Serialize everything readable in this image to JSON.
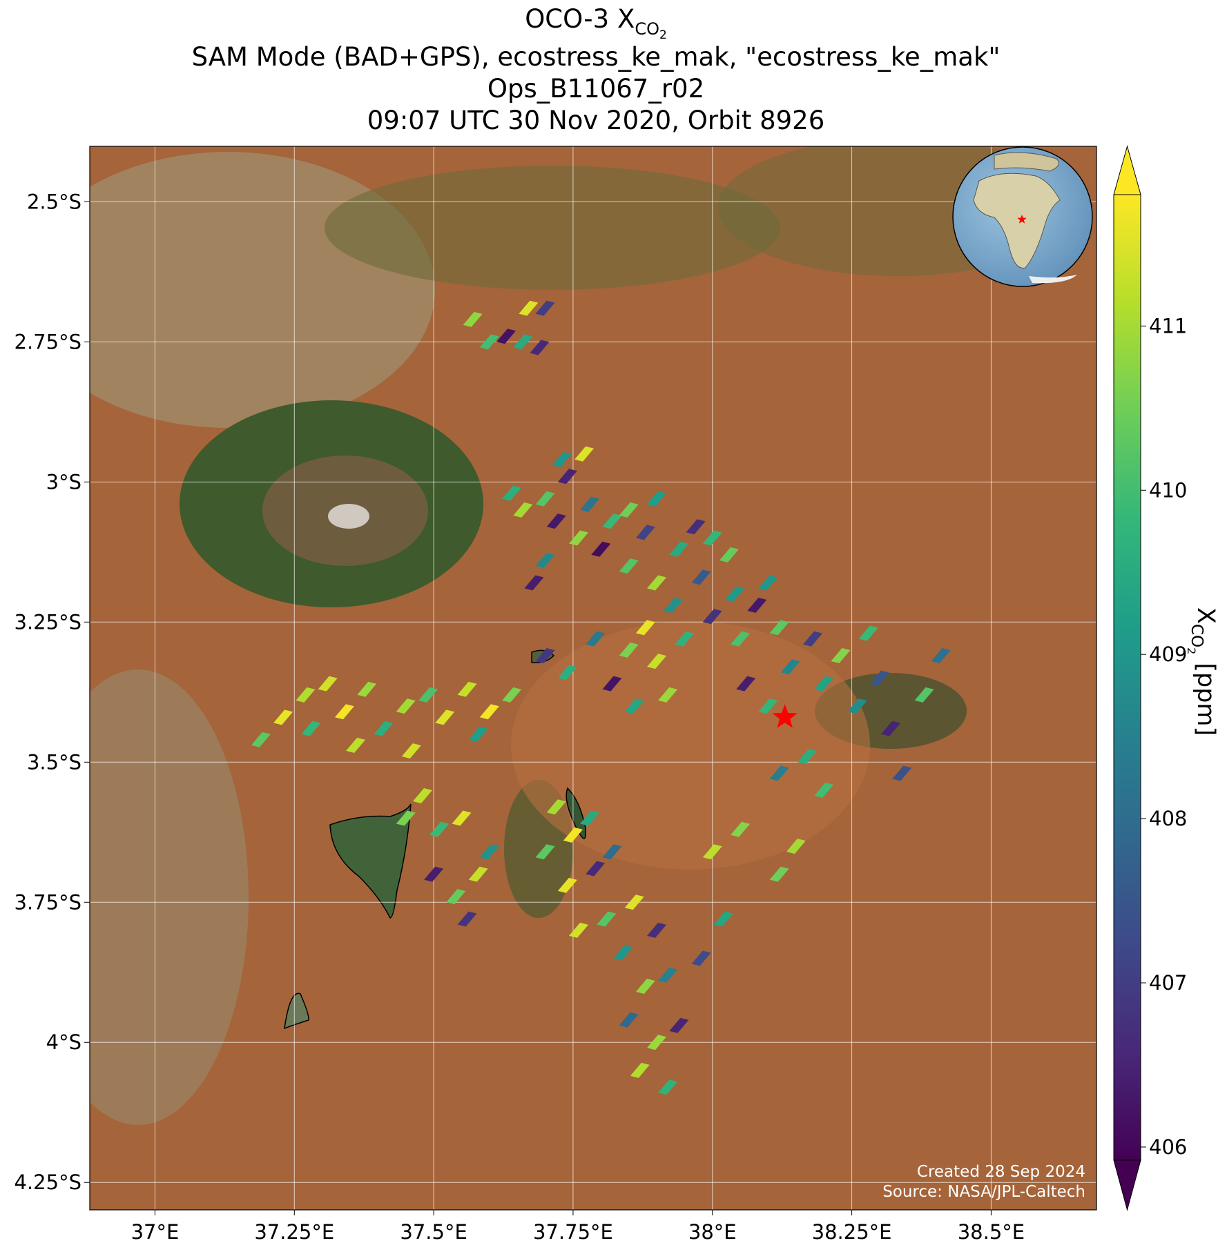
{
  "chart_data": {
    "type": "map",
    "title_main": "OCO-3 X",
    "title_sub": "CO",
    "title_subsub": "2",
    "subtitle_lines": [
      "SAM Mode (BAD+GPS), ecostress_ke_mak, \"ecostress_ke_mak\"",
      "Ops_B11067_r02",
      "09:07 UTC 30 Nov 2020, Orbit 8926"
    ],
    "xlim": [
      36.883,
      38.689
    ],
    "ylim": [
      -4.299,
      -2.401
    ],
    "xticks": [
      {
        "value": 37,
        "label": "37°E"
      },
      {
        "value": 37.25,
        "label": "37.25°E"
      },
      {
        "value": 37.5,
        "label": "37.5°E"
      },
      {
        "value": 37.75,
        "label": "37.75°E"
      },
      {
        "value": 38,
        "label": "38°E"
      },
      {
        "value": 38.25,
        "label": "38.25°E"
      },
      {
        "value": 38.5,
        "label": "38.5°E"
      }
    ],
    "yticks": [
      {
        "value": -2.5,
        "label": "2.5°S"
      },
      {
        "value": -2.75,
        "label": "2.75°S"
      },
      {
        "value": -3,
        "label": "3°S"
      },
      {
        "value": -3.25,
        "label": "3.25°S"
      },
      {
        "value": -3.5,
        "label": "3.5°S"
      },
      {
        "value": -3.75,
        "label": "3.75°S"
      },
      {
        "value": -4,
        "label": "4°S"
      },
      {
        "value": -4.25,
        "label": "4.25°S"
      }
    ],
    "grid": true,
    "colormap": "viridis",
    "clim": [
      405.92,
      411.8
    ],
    "cticks": [
      406,
      407,
      408,
      409,
      410,
      411
    ],
    "colorbar_label_main": "X",
    "colorbar_label_sub": "CO",
    "colorbar_label_subsub": "2",
    "colorbar_label_unit": "[ppm]",
    "marker": {
      "lon": 38.13,
      "lat": -3.42,
      "color": "#ff0000"
    },
    "credits": [
      "Created 28 Sep 2024",
      "Source: NASA/JPL-Caltech"
    ],
    "points": [
      [
        37.57,
        -2.71,
        410.8
      ],
      [
        37.6,
        -2.75,
        410.0
      ],
      [
        37.63,
        -2.74,
        406.2
      ],
      [
        37.66,
        -2.75,
        409.5
      ],
      [
        37.69,
        -2.76,
        406.6
      ],
      [
        37.67,
        -2.69,
        411.5
      ],
      [
        37.7,
        -2.69,
        407.0
      ],
      [
        37.73,
        -2.96,
        409.0
      ],
      [
        37.77,
        -2.95,
        411.5
      ],
      [
        37.74,
        -2.99,
        406.5
      ],
      [
        37.7,
        -3.03,
        410.2
      ],
      [
        37.66,
        -3.05,
        411.0
      ],
      [
        37.64,
        -3.02,
        409.6
      ],
      [
        37.72,
        -3.07,
        406.3
      ],
      [
        37.78,
        -3.04,
        408.2
      ],
      [
        37.82,
        -3.07,
        409.9
      ],
      [
        37.85,
        -3.05,
        410.5
      ],
      [
        37.88,
        -3.09,
        407.1
      ],
      [
        37.9,
        -3.03,
        409.2
      ],
      [
        37.8,
        -3.12,
        406.1
      ],
      [
        37.76,
        -3.1,
        410.8
      ],
      [
        37.7,
        -3.14,
        408.7
      ],
      [
        37.68,
        -3.18,
        406.4
      ],
      [
        37.85,
        -3.15,
        410.2
      ],
      [
        37.9,
        -3.18,
        411.0
      ],
      [
        37.94,
        -3.12,
        409.5
      ],
      [
        37.97,
        -3.08,
        406.7
      ],
      [
        38.0,
        -3.1,
        409.8
      ],
      [
        38.03,
        -3.13,
        410.4
      ],
      [
        37.98,
        -3.17,
        407.6
      ],
      [
        37.93,
        -3.22,
        408.9
      ],
      [
        37.88,
        -3.26,
        411.6
      ],
      [
        37.85,
        -3.3,
        410.6
      ],
      [
        37.9,
        -3.32,
        411.3
      ],
      [
        37.95,
        -3.28,
        409.7
      ],
      [
        38.0,
        -3.24,
        406.8
      ],
      [
        38.04,
        -3.2,
        409.1
      ],
      [
        37.82,
        -3.36,
        406.2
      ],
      [
        37.92,
        -3.38,
        410.9
      ],
      [
        37.86,
        -3.4,
        409.4
      ],
      [
        37.79,
        -3.28,
        408.3
      ],
      [
        37.74,
        -3.34,
        409.6
      ],
      [
        37.7,
        -3.31,
        406.9
      ],
      [
        38.05,
        -3.28,
        410.1
      ],
      [
        38.08,
        -3.22,
        406.3
      ],
      [
        38.1,
        -3.18,
        409.0
      ],
      [
        38.12,
        -3.26,
        410.3
      ],
      [
        38.06,
        -3.36,
        406.4
      ],
      [
        38.1,
        -3.4,
        409.8
      ],
      [
        38.14,
        -3.33,
        408.6
      ],
      [
        38.18,
        -3.28,
        407.0
      ],
      [
        38.2,
        -3.36,
        409.3
      ],
      [
        38.23,
        -3.31,
        410.7
      ],
      [
        38.26,
        -3.4,
        408.8
      ],
      [
        38.3,
        -3.35,
        407.5
      ],
      [
        38.28,
        -3.27,
        409.9
      ],
      [
        38.32,
        -3.44,
        406.5
      ],
      [
        38.38,
        -3.38,
        410.2
      ],
      [
        38.41,
        -3.31,
        408.1
      ],
      [
        38.17,
        -3.49,
        409.6
      ],
      [
        38.2,
        -3.55,
        410.0
      ],
      [
        38.12,
        -3.52,
        408.4
      ],
      [
        38.34,
        -3.52,
        407.4
      ],
      [
        37.19,
        -3.46,
        410.3
      ],
      [
        37.23,
        -3.42,
        411.6
      ],
      [
        37.27,
        -3.38,
        411.1
      ],
      [
        37.31,
        -3.36,
        411.4
      ],
      [
        37.28,
        -3.44,
        409.8
      ],
      [
        37.34,
        -3.41,
        411.7
      ],
      [
        37.38,
        -3.37,
        410.9
      ],
      [
        37.36,
        -3.47,
        411.2
      ],
      [
        37.41,
        -3.44,
        409.6
      ],
      [
        37.45,
        -3.4,
        411.0
      ],
      [
        37.49,
        -3.38,
        410.1
      ],
      [
        37.52,
        -3.42,
        411.5
      ],
      [
        37.56,
        -3.37,
        411.3
      ],
      [
        37.6,
        -3.41,
        411.7
      ],
      [
        37.64,
        -3.38,
        410.6
      ],
      [
        37.58,
        -3.45,
        409.2
      ],
      [
        37.46,
        -3.48,
        411.4
      ],
      [
        37.45,
        -3.6,
        410.6
      ],
      [
        37.48,
        -3.56,
        411.2
      ],
      [
        37.51,
        -3.62,
        409.9
      ],
      [
        37.55,
        -3.6,
        411.5
      ],
      [
        37.5,
        -3.7,
        406.4
      ],
      [
        37.54,
        -3.74,
        410.4
      ],
      [
        37.58,
        -3.7,
        411.3
      ],
      [
        37.6,
        -3.66,
        408.9
      ],
      [
        37.56,
        -3.78,
        406.8
      ],
      [
        37.72,
        -3.58,
        411.0
      ],
      [
        37.75,
        -3.63,
        411.7
      ],
      [
        37.7,
        -3.66,
        410.3
      ],
      [
        37.78,
        -3.6,
        409.5
      ],
      [
        37.74,
        -3.72,
        411.6
      ],
      [
        37.79,
        -3.69,
        406.6
      ],
      [
        37.82,
        -3.66,
        408.0
      ],
      [
        37.76,
        -3.8,
        411.4
      ],
      [
        37.81,
        -3.78,
        410.2
      ],
      [
        37.86,
        -3.75,
        411.5
      ],
      [
        37.84,
        -3.84,
        409.0
      ],
      [
        37.9,
        -3.8,
        406.7
      ],
      [
        37.88,
        -3.9,
        410.8
      ],
      [
        37.92,
        -3.88,
        408.5
      ],
      [
        37.85,
        -3.96,
        407.9
      ],
      [
        37.9,
        -4.0,
        410.9
      ],
      [
        37.94,
        -3.97,
        406.5
      ],
      [
        37.87,
        -4.05,
        411.1
      ],
      [
        37.92,
        -4.08,
        409.7
      ],
      [
        37.98,
        -3.85,
        407.3
      ],
      [
        38.02,
        -3.78,
        409.4
      ],
      [
        38.05,
        -3.62,
        410.7
      ],
      [
        38.0,
        -3.66,
        411.2
      ],
      [
        38.12,
        -3.7,
        410.5
      ],
      [
        38.15,
        -3.65,
        411.0
      ]
    ]
  }
}
